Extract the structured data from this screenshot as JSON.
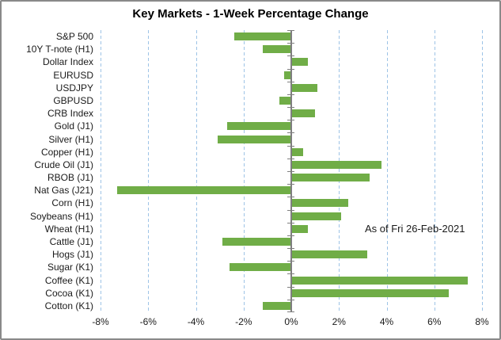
{
  "title": "Key Markets - 1-Week Percentage Change",
  "annotation": "As of Fri 26-Feb-2021",
  "colors": {
    "bar": "#70AD47",
    "gridline": "#9DC3E6",
    "axis": "#7F7F7F",
    "border": "#898989",
    "text": "#1a1a1a",
    "title_text": "#000000",
    "background": "#ffffff"
  },
  "chart_data": {
    "type": "bar",
    "orientation": "horizontal",
    "title": "Key Markets - 1-Week Percentage Change",
    "xlabel": "",
    "ylabel": "",
    "value_unit": "%",
    "xlim": [
      -8,
      8
    ],
    "x_tick_values": [
      -8,
      -6,
      -4,
      -2,
      0,
      2,
      4,
      6,
      8
    ],
    "x_tick_labels": [
      "-8%",
      "-6%",
      "-4%",
      "-2%",
      "0%",
      "2%",
      "4%",
      "6%",
      "8%"
    ],
    "grid": "vertical-dashed",
    "legend": "none",
    "annotation": "As of Fri 26-Feb-2021",
    "categories": [
      "S&P 500",
      "10Y T-note (H1)",
      "Dollar Index",
      "EURUSD",
      "USDJPY",
      "GBPUSD",
      "CRB Index",
      "Gold (J1)",
      "Silver (H1)",
      "Copper (H1)",
      "Crude Oil (J1)",
      "RBOB (J1)",
      "Nat Gas (J21)",
      "Corn (H1)",
      "Soybeans (H1)",
      "Wheat (H1)",
      "Cattle (J1)",
      "Hogs (J1)",
      "Sugar (K1)",
      "Coffee (K1)",
      "Cocoa (K1)",
      "Cotton (K1)"
    ],
    "values": [
      -2.4,
      -1.2,
      0.7,
      -0.3,
      1.1,
      -0.5,
      1.0,
      -2.7,
      -3.1,
      0.5,
      3.8,
      3.3,
      -7.3,
      2.4,
      2.1,
      0.7,
      -2.9,
      3.2,
      -2.6,
      7.4,
      6.6,
      -1.2
    ]
  }
}
